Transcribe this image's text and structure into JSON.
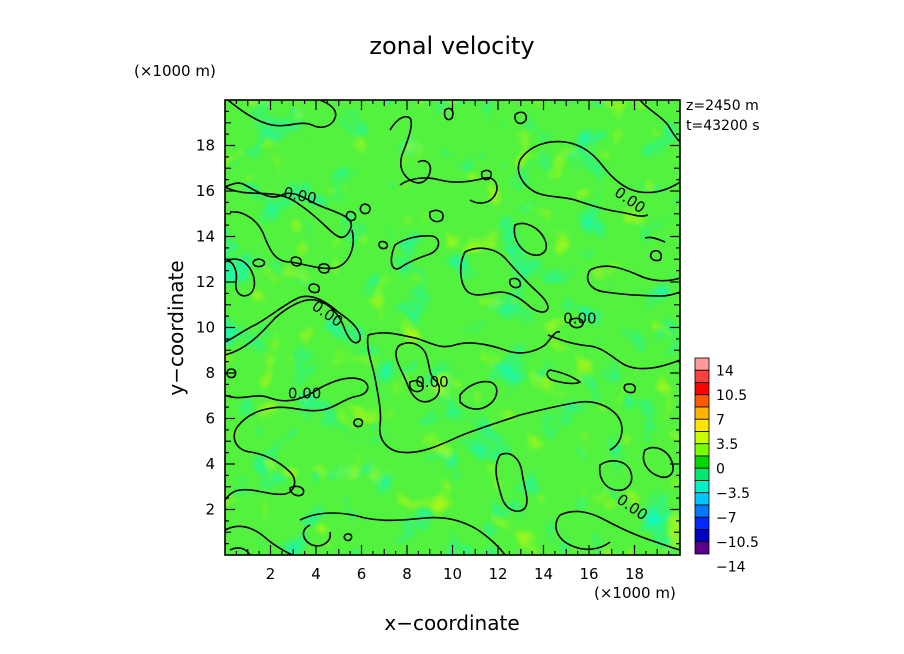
{
  "chart_data": {
    "type": "heatmap",
    "title": "zonal velocity",
    "xlabel": "x−coordinate",
    "ylabel": "y−coordinate",
    "x_unit": "(×1000 m)",
    "y_unit": "(×1000 m)",
    "xlim": [
      0,
      20
    ],
    "ylim": [
      0,
      20
    ],
    "x_ticks": [
      "2",
      "4",
      "6",
      "8",
      "10",
      "12",
      "14",
      "16",
      "18"
    ],
    "y_ticks": [
      "2",
      "4",
      "6",
      "8",
      "10",
      "12",
      "14",
      "16",
      "18"
    ],
    "annotations": [
      "z=2450 m",
      "t=43200 s"
    ],
    "colorbar": {
      "labels": [
        "14",
        "10.5",
        "7",
        "3.5",
        "0",
        "−3.5",
        "−7",
        "−10.5",
        "−14"
      ],
      "colors": [
        "#ff9a9a",
        "#ff4040",
        "#ff0000",
        "#ff5a00",
        "#ffb400",
        "#ffe600",
        "#c8ff00",
        "#78ff00",
        "#00d800",
        "#00e870",
        "#00f0c8",
        "#00c8ff",
        "#0078ff",
        "#0028ff",
        "#0000c0",
        "#5a008c"
      ]
    },
    "background_color": "#52f23e",
    "contour_level": "0.00",
    "contour_labels": [
      {
        "text": "0.00",
        "x": 3.3,
        "y": 15.8,
        "angle": 12
      },
      {
        "text": "0.00",
        "x": 17.8,
        "y": 15.6,
        "angle": 35
      },
      {
        "text": "0.00",
        "x": 4.5,
        "y": 10.6,
        "angle": 35
      },
      {
        "text": "0.00",
        "x": 15.6,
        "y": 10.4,
        "angle": 0
      },
      {
        "text": "0.00",
        "x": 3.5,
        "y": 7.1,
        "angle": 0
      },
      {
        "text": "0.00",
        "x": 9.1,
        "y": 7.6,
        "angle": 0
      },
      {
        "text": "0.00",
        "x": 17.9,
        "y": 2.1,
        "angle": 35
      }
    ]
  }
}
